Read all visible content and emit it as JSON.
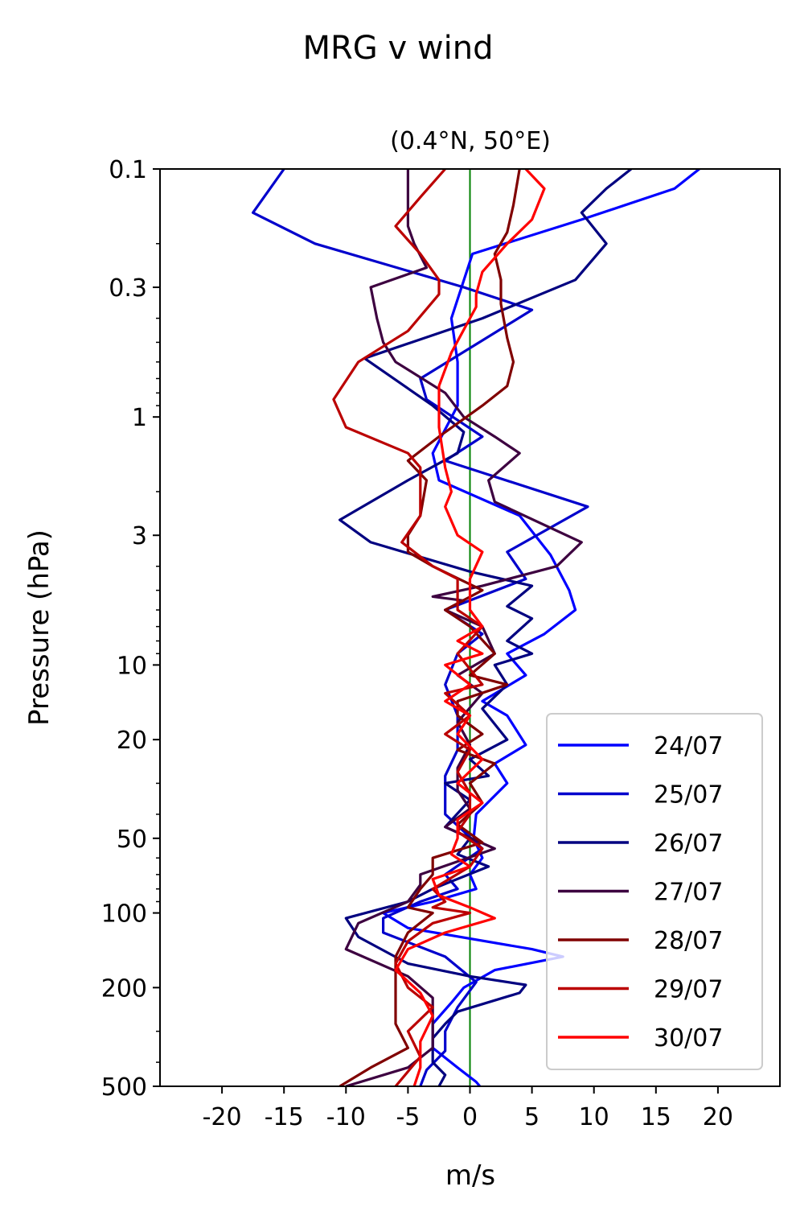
{
  "chart_data": {
    "type": "line",
    "title": "MRG v wind",
    "subtitle": "(0.4°N, 50°E)",
    "xlabel": "m/s",
    "ylabel": "Pressure (hPa)",
    "xlim": [
      -25,
      25
    ],
    "ylim": [
      500,
      0.1
    ],
    "yscale": "log",
    "x_ticks": [
      -20,
      -15,
      -10,
      -5,
      0,
      5,
      10,
      15,
      20
    ],
    "x_tick_labels": [
      "-20",
      "-15",
      "-10",
      "-5",
      "0",
      "5",
      "10",
      "15",
      "20"
    ],
    "y_ticks": [
      0.1,
      0.3,
      1,
      3,
      10,
      20,
      50,
      100,
      200,
      500
    ],
    "y_tick_labels": [
      "0.1",
      "0.3",
      "1",
      "3",
      "10",
      "20",
      "50",
      "100",
      "200",
      "500"
    ],
    "y_minor_ticks": [
      0.2,
      0.4,
      0.5,
      0.6,
      0.7,
      0.8,
      0.9,
      2,
      4,
      5,
      6,
      7,
      8,
      9,
      30,
      40,
      60,
      70,
      80,
      90,
      300,
      400
    ],
    "zero_line_color": "#008000",
    "legend_position": "lower-right",
    "series": [
      {
        "name": "24/07",
        "color": "#0000ff",
        "points": [
          [
            18.5,
            0.1
          ],
          [
            16.5,
            0.12
          ],
          [
            9,
            0.16
          ],
          [
            0.2,
            0.22
          ],
          [
            -1.5,
            0.4
          ],
          [
            -1,
            0.6
          ],
          [
            -1,
            0.9
          ],
          [
            -3,
            1.4
          ],
          [
            -2.5,
            1.8
          ],
          [
            4,
            2.5
          ],
          [
            6.5,
            3.6
          ],
          [
            8,
            5
          ],
          [
            8.5,
            6
          ],
          [
            6,
            7.5
          ],
          [
            3,
            9
          ],
          [
            4.5,
            11
          ],
          [
            1,
            14
          ],
          [
            3,
            16
          ],
          [
            4.5,
            21
          ],
          [
            2,
            25
          ],
          [
            3,
            30
          ],
          [
            0.5,
            40
          ],
          [
            0.3,
            50
          ],
          [
            1,
            60
          ],
          [
            0,
            70
          ],
          [
            0.5,
            80
          ],
          [
            -3,
            90
          ],
          [
            -7,
            100
          ],
          [
            -5,
            115
          ],
          [
            5,
            140
          ],
          [
            7.5,
            150
          ],
          [
            2,
            170
          ],
          [
            -0.5,
            200
          ],
          [
            -1.5,
            230
          ],
          [
            -3,
            280
          ],
          [
            -3,
            350
          ],
          [
            -1,
            420
          ],
          [
            0.5,
            480
          ],
          [
            0.8,
            500
          ]
        ]
      },
      {
        "name": "25/07",
        "color": "#0000cc",
        "points": [
          [
            -15,
            0.1
          ],
          [
            -17.5,
            0.15
          ],
          [
            -12.5,
            0.2
          ],
          [
            -0.5,
            0.3
          ],
          [
            5,
            0.37
          ],
          [
            -4,
            0.7
          ],
          [
            -3.5,
            0.85
          ],
          [
            1,
            1.2
          ],
          [
            -2,
            1.5
          ],
          [
            9.5,
            2.3
          ],
          [
            3,
            3.5
          ],
          [
            4.5,
            4.5
          ],
          [
            -2,
            6
          ],
          [
            1,
            7.5
          ],
          [
            -1,
            9
          ],
          [
            -2,
            12
          ],
          [
            -1,
            16
          ],
          [
            -1,
            22
          ],
          [
            -2,
            28
          ],
          [
            -2,
            40
          ],
          [
            1,
            55
          ],
          [
            -2,
            70
          ],
          [
            -1,
            80
          ],
          [
            -4,
            90
          ],
          [
            -7,
            105
          ],
          [
            -7,
            120
          ],
          [
            -2,
            150
          ],
          [
            0.5,
            190
          ],
          [
            -1,
            240
          ],
          [
            -2,
            300
          ],
          [
            -2,
            360
          ],
          [
            -3.5,
            430
          ],
          [
            -4,
            500
          ]
        ]
      },
      {
        "name": "26/07",
        "color": "#000080",
        "points": [
          [
            13,
            0.1
          ],
          [
            11,
            0.12
          ],
          [
            9,
            0.15
          ],
          [
            11,
            0.2
          ],
          [
            8.5,
            0.28
          ],
          [
            1,
            0.4
          ],
          [
            -8.5,
            0.58
          ],
          [
            -3,
            0.9
          ],
          [
            -0.5,
            1.15
          ],
          [
            -1,
            1.4
          ],
          [
            -5,
            1.8
          ],
          [
            -10.5,
            2.6
          ],
          [
            -8,
            3.2
          ],
          [
            0,
            4.2
          ],
          [
            5,
            4.8
          ],
          [
            3,
            5.8
          ],
          [
            5,
            6.5
          ],
          [
            3,
            8
          ],
          [
            5,
            9
          ],
          [
            2,
            10
          ],
          [
            3,
            12
          ],
          [
            1,
            15
          ],
          [
            3,
            20
          ],
          [
            0,
            24
          ],
          [
            1.5,
            28
          ],
          [
            -2,
            30
          ],
          [
            0,
            35
          ],
          [
            -2,
            45
          ],
          [
            0,
            50
          ],
          [
            -1,
            58
          ],
          [
            1.5,
            65
          ],
          [
            -3,
            80
          ],
          [
            -5,
            90
          ],
          [
            -10,
            105
          ],
          [
            -9,
            125
          ],
          [
            -5,
            160
          ],
          [
            0,
            180
          ],
          [
            4.5,
            195
          ],
          [
            4,
            210
          ],
          [
            -1,
            250
          ],
          [
            -2,
            280
          ],
          [
            -3,
            320
          ],
          [
            -3,
            400
          ],
          [
            -2,
            450
          ],
          [
            -2.5,
            500
          ]
        ]
      },
      {
        "name": "27/07",
        "color": "#3d0040",
        "points": [
          [
            -5,
            0.1
          ],
          [
            -5,
            0.13
          ],
          [
            -5,
            0.17
          ],
          [
            -4.5,
            0.2
          ],
          [
            -3.5,
            0.25
          ],
          [
            -8,
            0.3
          ],
          [
            -7.5,
            0.4
          ],
          [
            -7,
            0.5
          ],
          [
            -6,
            0.6
          ],
          [
            -2,
            0.8
          ],
          [
            -0.5,
            1
          ],
          [
            2,
            1.2
          ],
          [
            4,
            1.4
          ],
          [
            1.5,
            1.8
          ],
          [
            2,
            2.2
          ],
          [
            9,
            3.2
          ],
          [
            7,
            4
          ],
          [
            1,
            4.8
          ],
          [
            -3,
            5.3
          ],
          [
            -0.5,
            5.5
          ],
          [
            -2,
            6
          ],
          [
            1,
            7
          ],
          [
            2,
            9
          ],
          [
            -1,
            11
          ],
          [
            1,
            13
          ],
          [
            -1,
            17
          ],
          [
            0,
            21
          ],
          [
            -1,
            26
          ],
          [
            -1,
            32
          ],
          [
            0,
            38
          ],
          [
            -2,
            45
          ],
          [
            2,
            55
          ],
          [
            -1,
            62
          ],
          [
            -4,
            70
          ],
          [
            -4,
            77
          ],
          [
            -5,
            90
          ],
          [
            -9,
            110
          ],
          [
            -10,
            140
          ],
          [
            -5,
            180
          ],
          [
            -3,
            220
          ],
          [
            -3,
            280
          ],
          [
            -3,
            350
          ],
          [
            -5,
            420
          ],
          [
            -10,
            500
          ]
        ]
      },
      {
        "name": "28/07",
        "color": "#800000",
        "points": [
          [
            4,
            0.1
          ],
          [
            3.5,
            0.14
          ],
          [
            3,
            0.18
          ],
          [
            2,
            0.22
          ],
          [
            2.5,
            0.28
          ],
          [
            2.5,
            0.35
          ],
          [
            3,
            0.48
          ],
          [
            3.5,
            0.6
          ],
          [
            3,
            0.75
          ],
          [
            1,
            0.9
          ],
          [
            -2.5,
            1.2
          ],
          [
            -5,
            1.5
          ],
          [
            -3.5,
            1.8
          ],
          [
            -4,
            2.5
          ],
          [
            -5,
            3
          ],
          [
            -5,
            3.5
          ],
          [
            -3,
            4
          ],
          [
            1,
            5
          ],
          [
            -2,
            6
          ],
          [
            0,
            7
          ],
          [
            2,
            9
          ],
          [
            0,
            11
          ],
          [
            3,
            12
          ],
          [
            -1,
            14
          ],
          [
            -1,
            16
          ],
          [
            1,
            19
          ],
          [
            -1,
            22
          ],
          [
            2,
            25
          ],
          [
            0,
            30
          ],
          [
            1,
            36
          ],
          [
            -1,
            44
          ],
          [
            1,
            52
          ],
          [
            -3,
            60
          ],
          [
            -3,
            70
          ],
          [
            -4,
            80
          ],
          [
            -5,
            95
          ],
          [
            -3,
            100
          ],
          [
            -5,
            120
          ],
          [
            -6,
            150
          ],
          [
            -6,
            200
          ],
          [
            -6,
            280
          ],
          [
            -5,
            350
          ],
          [
            -8,
            420
          ],
          [
            -10.5,
            500
          ]
        ]
      },
      {
        "name": "29/07",
        "color": "#bb0000",
        "points": [
          [
            -2,
            0.1
          ],
          [
            -4,
            0.13
          ],
          [
            -6,
            0.17
          ],
          [
            -4,
            0.22
          ],
          [
            -2.5,
            0.28
          ],
          [
            -2.5,
            0.32
          ],
          [
            -5,
            0.45
          ],
          [
            -9,
            0.6
          ],
          [
            -11,
            0.85
          ],
          [
            -10,
            1.1
          ],
          [
            -5,
            1.4
          ],
          [
            -4,
            1.6
          ],
          [
            -4,
            2
          ],
          [
            -4,
            2.5
          ],
          [
            -5.5,
            3.2
          ],
          [
            -3,
            4
          ],
          [
            -1,
            4.5
          ],
          [
            -1,
            6
          ],
          [
            1,
            7
          ],
          [
            -1,
            9
          ],
          [
            1,
            12
          ],
          [
            -2,
            13
          ],
          [
            0,
            16
          ],
          [
            -2,
            19
          ],
          [
            0,
            22
          ],
          [
            -1,
            27
          ],
          [
            0,
            33
          ],
          [
            0,
            40
          ],
          [
            -1,
            47
          ],
          [
            1,
            55
          ],
          [
            0,
            65
          ],
          [
            -3,
            80
          ],
          [
            -2,
            90
          ],
          [
            -3,
            95
          ],
          [
            0,
            100
          ],
          [
            -3,
            110
          ],
          [
            -5,
            130
          ],
          [
            -6,
            160
          ],
          [
            -5,
            200
          ],
          [
            -3,
            240
          ],
          [
            -5,
            300
          ],
          [
            -4,
            380
          ],
          [
            -6,
            500
          ]
        ]
      },
      {
        "name": "30/07",
        "color": "#ff0000",
        "points": [
          [
            4.5,
            0.1
          ],
          [
            6,
            0.12
          ],
          [
            5,
            0.16
          ],
          [
            3,
            0.2
          ],
          [
            1,
            0.26
          ],
          [
            0.5,
            0.32
          ],
          [
            0.5,
            0.36
          ],
          [
            -1.5,
            0.55
          ],
          [
            -2.5,
            0.75
          ],
          [
            -2.5,
            1.1
          ],
          [
            -2,
            1.6
          ],
          [
            -1.5,
            2
          ],
          [
            -2,
            2.3
          ],
          [
            -1,
            3
          ],
          [
            1,
            3.5
          ],
          [
            0,
            4.5
          ],
          [
            0,
            6
          ],
          [
            1,
            7
          ],
          [
            -1,
            8
          ],
          [
            1,
            9
          ],
          [
            -2,
            10
          ],
          [
            0,
            12
          ],
          [
            -2,
            14
          ],
          [
            0,
            16
          ],
          [
            -1,
            19
          ],
          [
            1,
            24
          ],
          [
            -1,
            30
          ],
          [
            1,
            36
          ],
          [
            -1,
            42
          ],
          [
            -1,
            50
          ],
          [
            -1.5,
            58
          ],
          [
            0,
            65
          ],
          [
            -3,
            73
          ],
          [
            -2.5,
            85
          ],
          [
            0,
            95
          ],
          [
            2,
            105
          ],
          [
            -2,
            120
          ],
          [
            -5,
            140
          ],
          [
            -6,
            170
          ],
          [
            -4,
            210
          ],
          [
            -3,
            260
          ],
          [
            -4,
            330
          ],
          [
            -4,
            420
          ],
          [
            -4.5,
            500
          ]
        ]
      }
    ]
  }
}
